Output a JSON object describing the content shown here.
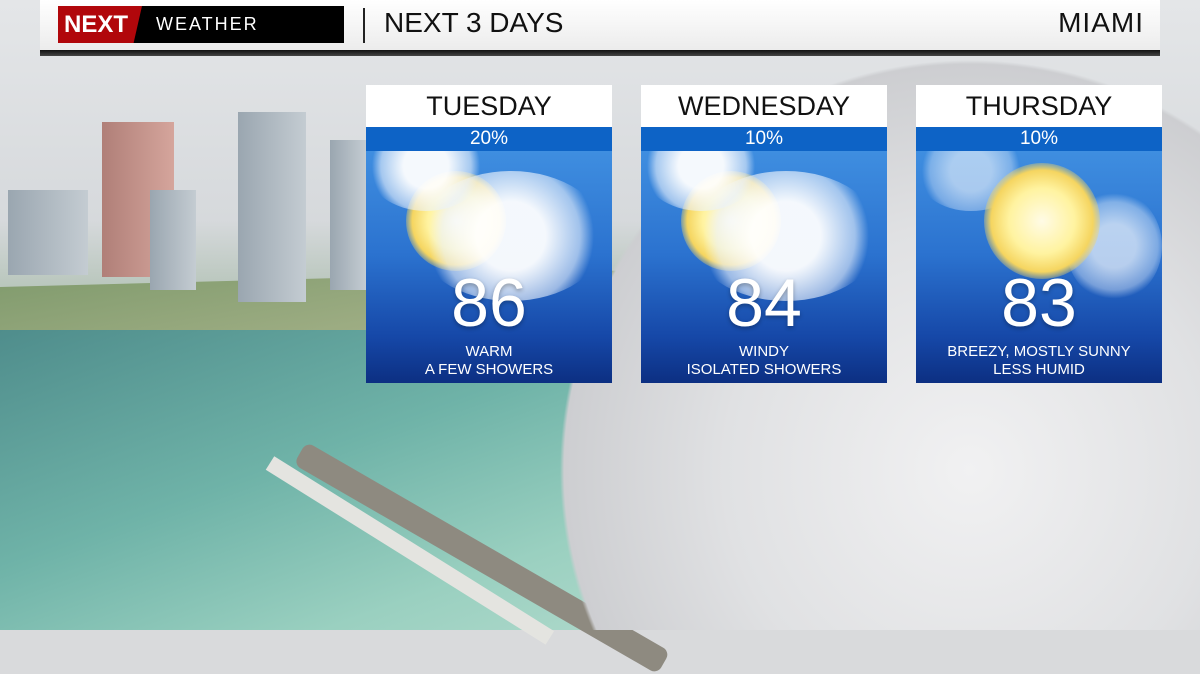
{
  "header": {
    "logo_text": "NEXT WEATHER",
    "logo_part1": "NEXT",
    "logo_part2": "WEATHER",
    "title": "NEXT 3 DAYS",
    "location": "MIAMI"
  },
  "colors": {
    "logo_red": "#b1070b",
    "rain_bar": "#0d63c6",
    "panel_sky": "#2b72cf"
  },
  "days": [
    {
      "name": "TUESDAY",
      "rain_chance": "20%",
      "high": "86",
      "line1": "WARM",
      "line2": "A FEW SHOWERS",
      "icon": "partly-cloudy-icon"
    },
    {
      "name": "WEDNESDAY",
      "rain_chance": "10%",
      "high": "84",
      "line1": "WINDY",
      "line2": "ISOLATED SHOWERS",
      "icon": "partly-cloudy-icon"
    },
    {
      "name": "THURSDAY",
      "rain_chance": "10%",
      "high": "83",
      "line1": "BREEZY, MOSTLY SUNNY",
      "line2": "LESS HUMID",
      "icon": "mostly-sunny-icon"
    }
  ]
}
